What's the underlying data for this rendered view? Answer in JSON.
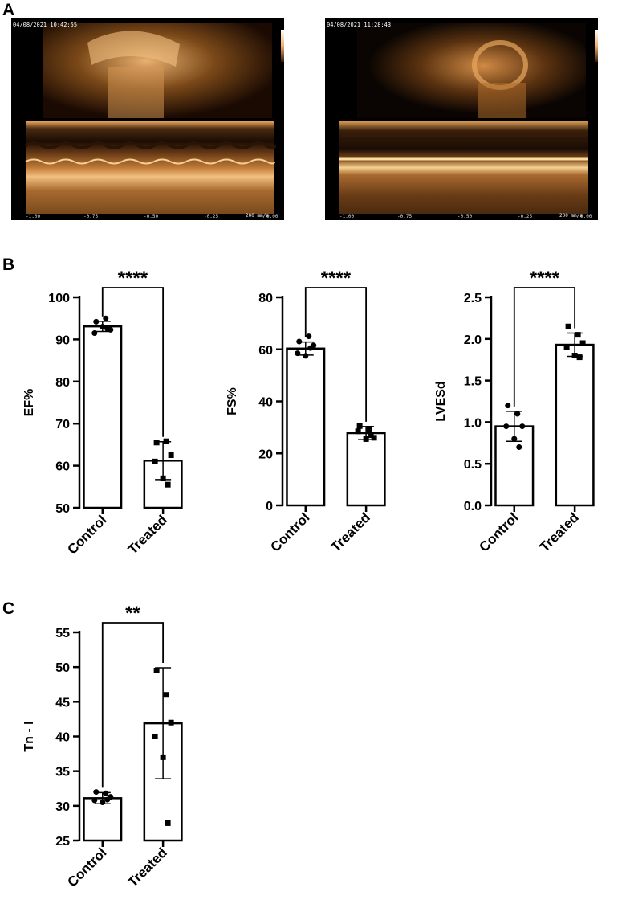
{
  "panels": {
    "a": "A",
    "b": "B",
    "c": "C"
  },
  "ultrasound": [
    {
      "timestamp": "04/08/2021 10:42:55",
      "speed": "200 mm/s",
      "depth_top": [
        "0.5",
        "1.0",
        "1.5"
      ],
      "depth_bottom": [
        "0.2",
        "0.4",
        "0.6",
        "0.8",
        "1.0",
        "1.2",
        "1.4"
      ],
      "time_ticks": [
        "-1.00",
        "-0.75",
        "-0.50",
        "-0.25",
        "0.00"
      ],
      "unit": "[cm]"
    },
    {
      "timestamp": "04/08/2021 11:28:43",
      "speed": "200 mm/s",
      "depth_top": [
        "0.5",
        "1.0",
        "1.5"
      ],
      "depth_bottom": [
        "0.2",
        "0.4",
        "0.6",
        "0.8",
        "1.0",
        "1.2",
        "1.4"
      ],
      "time_ticks": [
        "-1.00",
        "-0.75",
        "-0.50",
        "-0.25",
        "0.00"
      ],
      "unit": "[cm]"
    }
  ],
  "chart_data": [
    {
      "type": "bar",
      "ylabel": "EF%",
      "categories": [
        "Control",
        "Treated"
      ],
      "values": [
        93.1,
        61.2
      ],
      "error": [
        1.2,
        4.5
      ],
      "points": [
        [
          94.2,
          95.0,
          92.3,
          91.5,
          93.0,
          92.5
        ],
        [
          65.5,
          65.8,
          62.5,
          61.0,
          57.0,
          55.5
        ]
      ],
      "ylim": [
        50,
        100
      ],
      "yticks": [
        "50",
        "60",
        "70",
        "80",
        "90",
        "100"
      ],
      "significance": "****",
      "markers": [
        "circle",
        "square"
      ]
    },
    {
      "type": "bar",
      "ylabel": "FS%",
      "categories": [
        "Control",
        "Treated"
      ],
      "values": [
        60.3,
        27.8
      ],
      "error": [
        2.5,
        2.5
      ],
      "points": [
        [
          63.0,
          65.0,
          61.5,
          58.5,
          57.5,
          60.5
        ],
        [
          30.5,
          29.5,
          26.0,
          28.5,
          25.5,
          27.0
        ]
      ],
      "ylim": [
        0,
        80
      ],
      "yticks": [
        "0",
        "20",
        "40",
        "60",
        "80"
      ],
      "significance": "****",
      "markers": [
        "circle",
        "square"
      ]
    },
    {
      "type": "bar",
      "ylabel": "LVESd",
      "categories": [
        "Control",
        "Treated"
      ],
      "values": [
        0.95,
        1.93
      ],
      "error": [
        0.18,
        0.14
      ],
      "points": [
        [
          1.2,
          1.1,
          0.95,
          0.95,
          0.8,
          0.7
        ],
        [
          2.15,
          2.05,
          1.95,
          1.9,
          1.8,
          1.78
        ]
      ],
      "ylim": [
        0,
        2.5
      ],
      "yticks": [
        "0.0",
        "0.5",
        "1.0",
        "1.5",
        "2.0",
        "2.5"
      ],
      "significance": "****",
      "markers": [
        "circle",
        "square"
      ]
    },
    {
      "type": "bar",
      "ylabel": "Tn - I",
      "categories": [
        "Control",
        "Treated"
      ],
      "values": [
        31.1,
        41.9
      ],
      "error": [
        0.8,
        8.0
      ],
      "points": [
        [
          32.0,
          31.8,
          31.3,
          30.8,
          30.5,
          30.9
        ],
        [
          49.5,
          46.0,
          42.0,
          40.0,
          37.0,
          27.5
        ]
      ],
      "ylim": [
        25,
        55
      ],
      "yticks": [
        "25",
        "30",
        "35",
        "40",
        "45",
        "50",
        "55"
      ],
      "significance": "**",
      "markers": [
        "circle",
        "square"
      ]
    }
  ]
}
